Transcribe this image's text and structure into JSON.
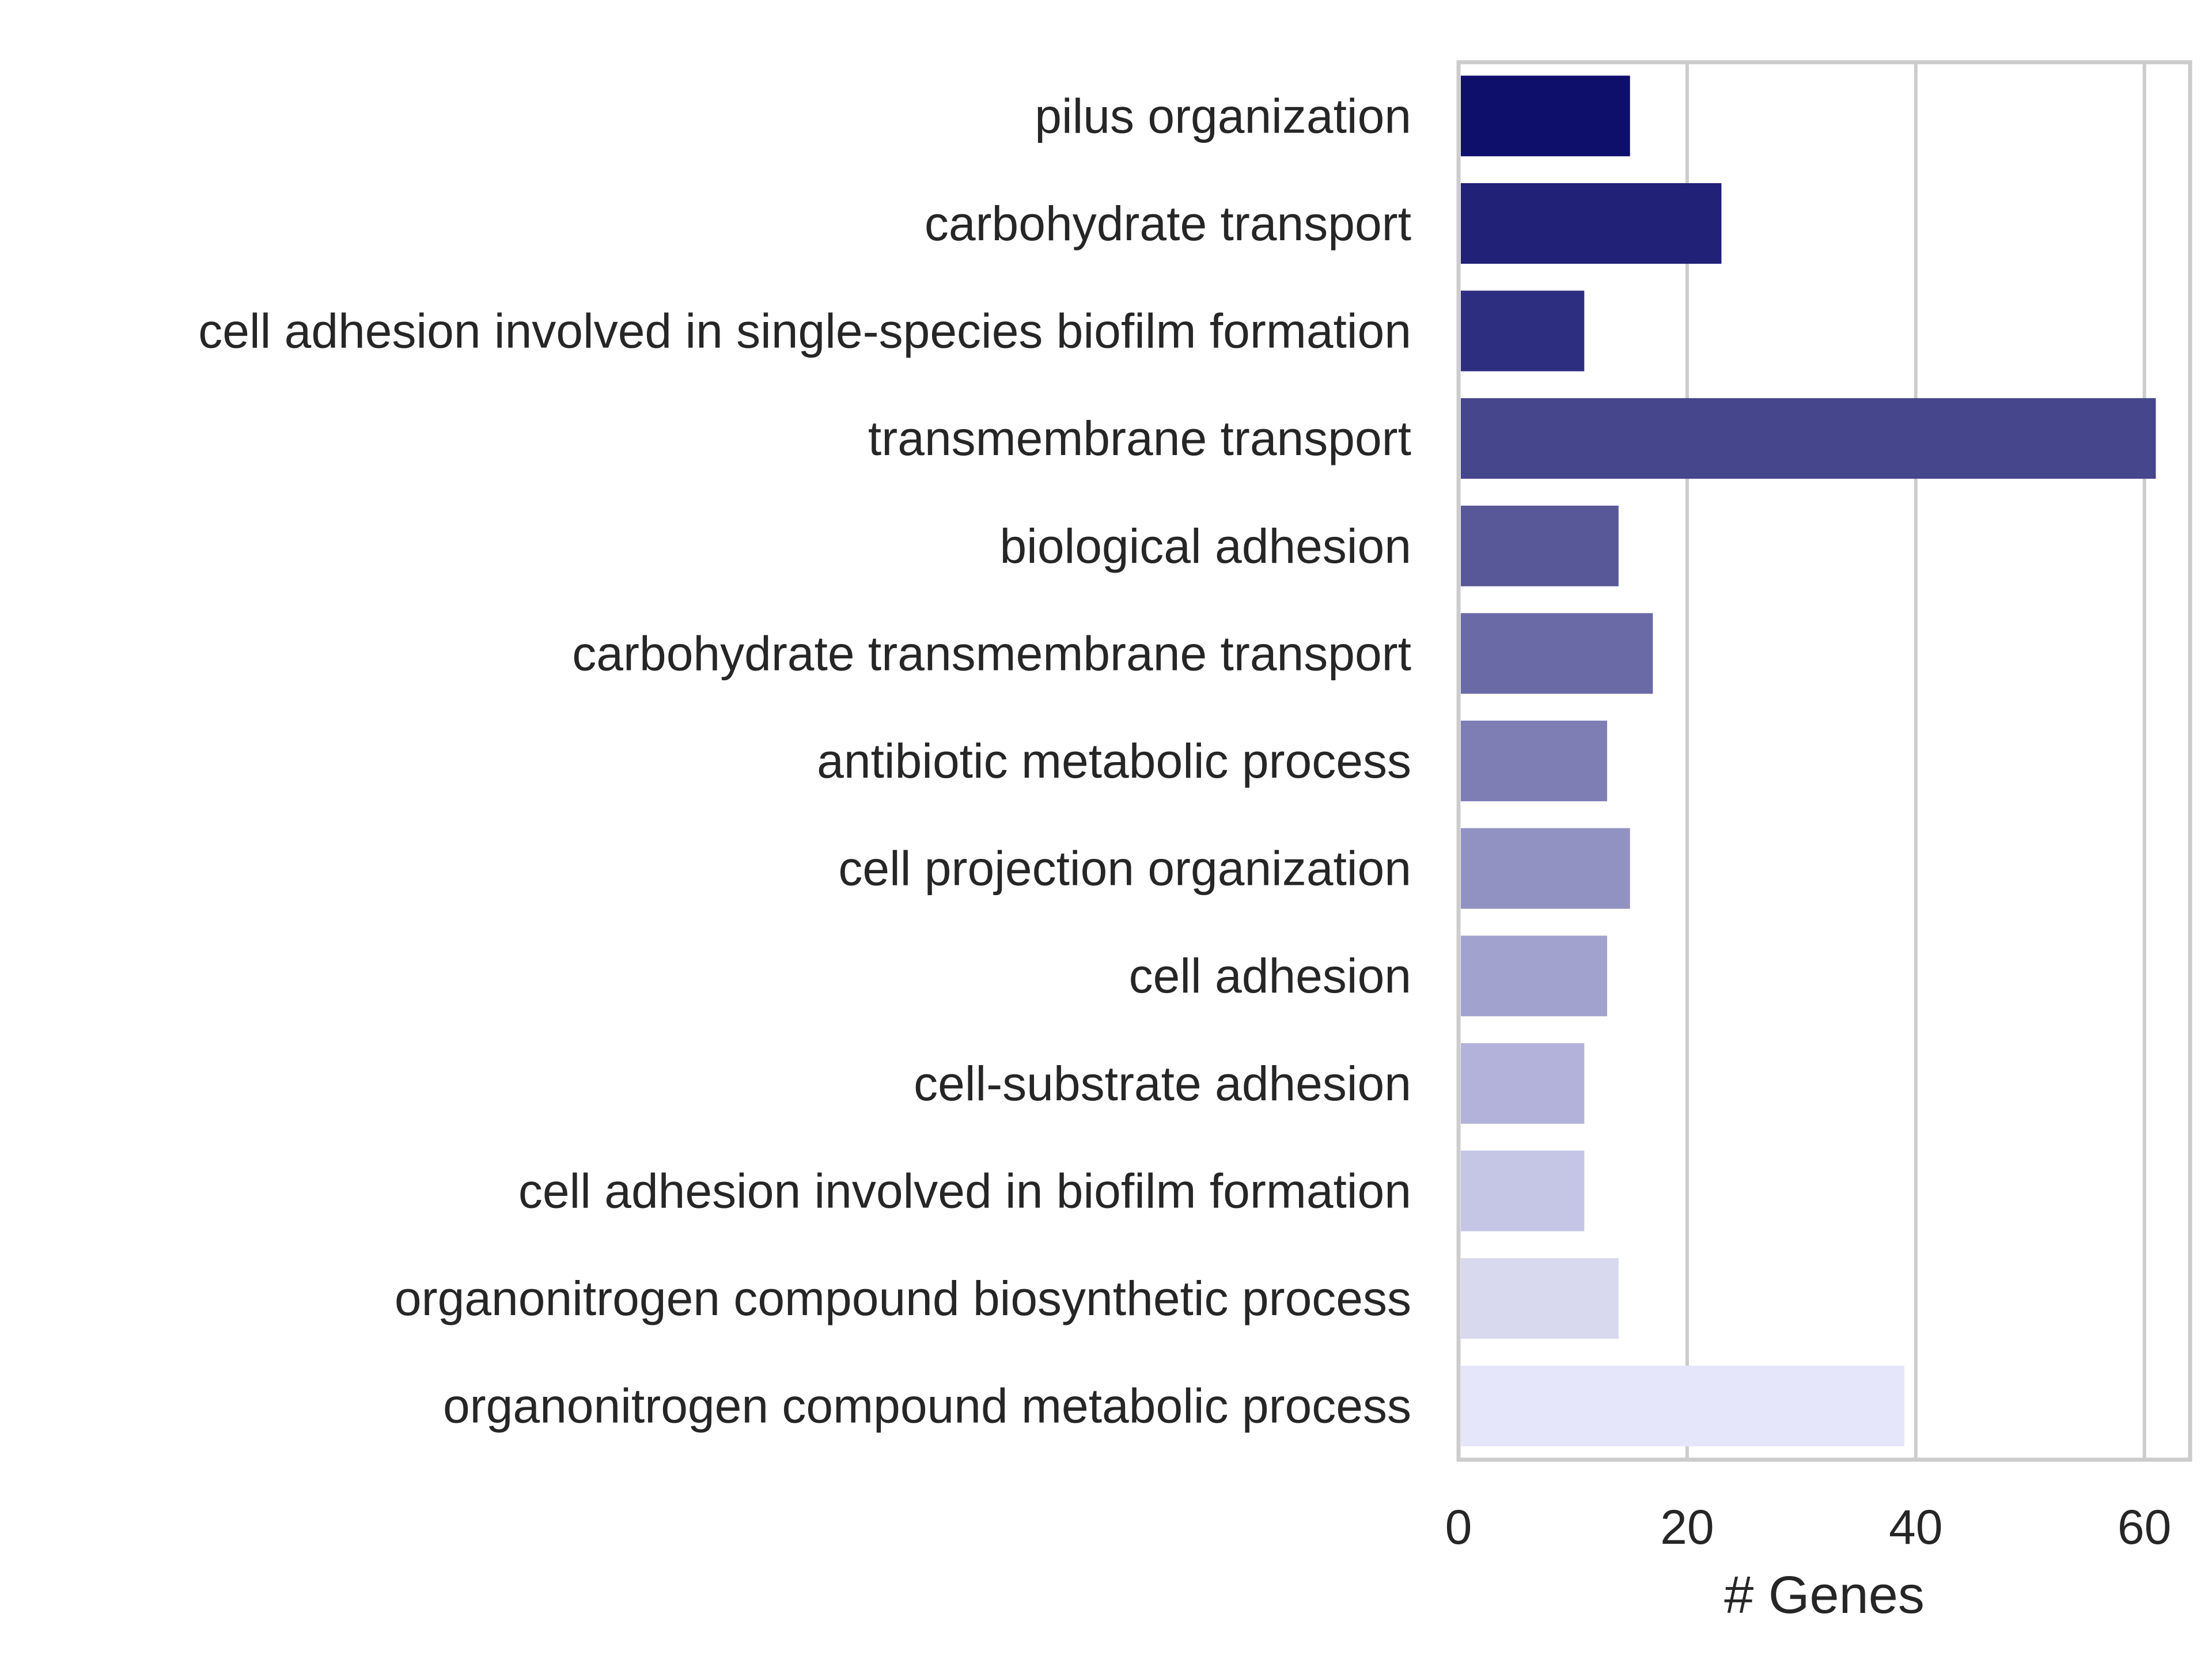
{
  "chart_data": {
    "type": "bar",
    "orientation": "horizontal",
    "categories": [
      "pilus organization",
      "carbohydrate transport",
      "cell adhesion involved in single-species biofilm formation",
      "transmembrane transport",
      "biological adhesion",
      "carbohydrate transmembrane transport",
      "antibiotic metabolic process",
      "cell projection organization",
      "cell adhesion",
      "cell-substrate adhesion",
      "cell adhesion involved in biofilm formation",
      "organonitrogen compound biosynthetic process",
      "organonitrogen compound metabolic process"
    ],
    "values": [
      15,
      23,
      11,
      61,
      14,
      17,
      13,
      15,
      13,
      11,
      11,
      14,
      39
    ],
    "colors": [
      "#0e0e6b",
      "#212178",
      "#2e2e81",
      "#46468d",
      "#585899",
      "#6a6aa7",
      "#7e7eb5",
      "#9292c2",
      "#a2a2ce",
      "#b2b2da",
      "#c5c5e6",
      "#d8d8ef",
      "#e6e6fa"
    ],
    "xlabel": "# Genes",
    "ylabel": "",
    "title": "",
    "xlim": [
      0,
      64
    ],
    "xticks": [
      "0",
      "20",
      "40",
      "60"
    ],
    "xtick_values": [
      0,
      20,
      40,
      60
    ],
    "grid": "vertical",
    "grid_color": "#cccccc",
    "frame_color": "#cccccc"
  }
}
